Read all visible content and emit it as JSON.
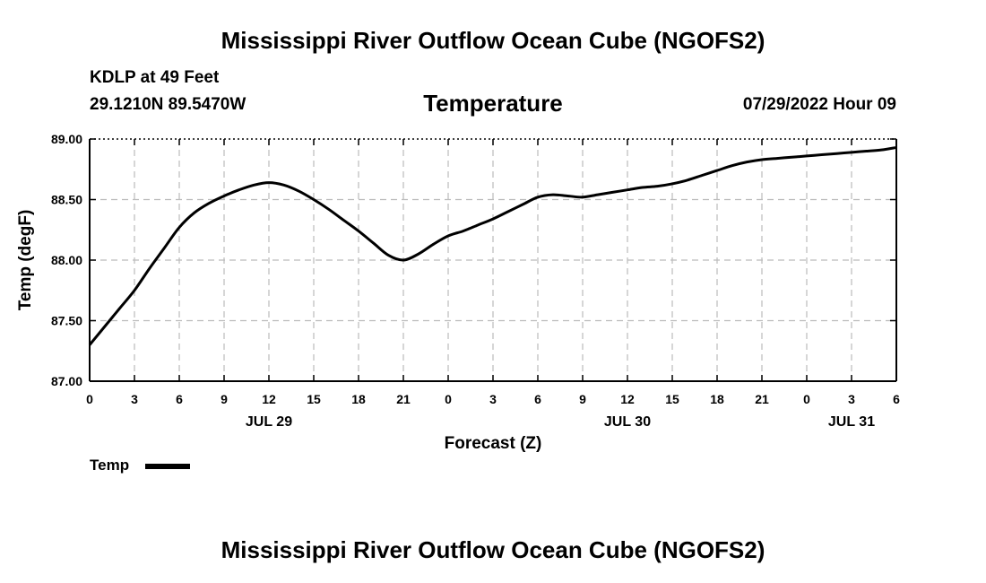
{
  "header": {
    "title": "Mississippi River Outflow Ocean Cube (NGOFS2)",
    "station": "KDLP at 49 Feet",
    "coords": "29.1210N  89.5470W",
    "subtitle": "Temperature",
    "datetime": "07/29/2022 Hour 09"
  },
  "footer": {
    "title": "Mississippi River Outflow Ocean Cube (NGOFS2)"
  },
  "legend": {
    "label": "Temp"
  },
  "colors": {
    "line": "#000000",
    "grid": "#bbbbbb",
    "axis": "#000000"
  },
  "chart_data": {
    "type": "line",
    "title": "Temperature",
    "xlabel": "Forecast (Z)",
    "ylabel": "Temp (degF)",
    "ylim": [
      87.0,
      89.0
    ],
    "xlim": [
      0,
      54
    ],
    "yticks": [
      87.0,
      87.5,
      88.0,
      88.5,
      89.0
    ],
    "ytick_labels": [
      "87.00",
      "87.50",
      "88.00",
      "88.50",
      "89.00"
    ],
    "xticks": [
      0,
      3,
      6,
      9,
      12,
      15,
      18,
      21,
      24,
      27,
      30,
      33,
      36,
      39,
      42,
      45,
      48,
      51,
      54
    ],
    "xtick_labels": [
      "0",
      "3",
      "6",
      "9",
      "12",
      "15",
      "18",
      "21",
      "0",
      "3",
      "6",
      "9",
      "12",
      "15",
      "18",
      "21",
      "0",
      "3",
      "6"
    ],
    "date_labels": [
      {
        "label": "JUL 29",
        "x": 12
      },
      {
        "label": "JUL 30",
        "x": 36
      },
      {
        "label": "JUL 31",
        "x": 51
      }
    ],
    "grid": true,
    "legend_position": "bottom-left",
    "series": [
      {
        "name": "Temp",
        "x": [
          0,
          1,
          2,
          3,
          4,
          5,
          6,
          7,
          8,
          9,
          10,
          11,
          12,
          13,
          14,
          15,
          16,
          17,
          18,
          19,
          20,
          21,
          22,
          23,
          24,
          25,
          26,
          27,
          28,
          29,
          30,
          31,
          32,
          33,
          34,
          35,
          36,
          37,
          38,
          39,
          40,
          41,
          42,
          43,
          44,
          45,
          46,
          47,
          48,
          49,
          50,
          51,
          52,
          53,
          54
        ],
        "values": [
          87.3,
          87.45,
          87.6,
          87.75,
          87.93,
          88.1,
          88.27,
          88.39,
          88.47,
          88.53,
          88.58,
          88.62,
          88.64,
          88.62,
          88.57,
          88.5,
          88.42,
          88.33,
          88.24,
          88.14,
          88.04,
          88.0,
          88.05,
          88.13,
          88.2,
          88.24,
          88.29,
          88.34,
          88.4,
          88.46,
          88.52,
          88.54,
          88.53,
          88.52,
          88.54,
          88.56,
          88.58,
          88.6,
          88.61,
          88.63,
          88.66,
          88.7,
          88.74,
          88.78,
          88.81,
          88.83,
          88.84,
          88.85,
          88.86,
          88.87,
          88.88,
          88.89,
          88.9,
          88.91,
          88.93
        ]
      }
    ]
  }
}
